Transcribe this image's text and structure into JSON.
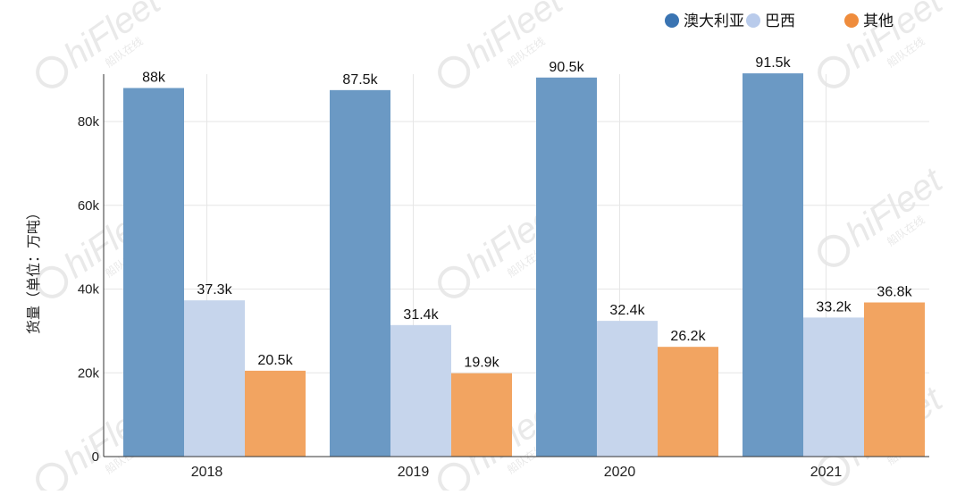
{
  "chart_data": {
    "type": "bar",
    "title": "",
    "xlabel": "",
    "ylabel": "货量（单位：万吨）",
    "ylim": [
      0,
      90000
    ],
    "yticks": [
      {
        "value": 0,
        "label": "0"
      },
      {
        "value": 20000,
        "label": "20k"
      },
      {
        "value": 40000,
        "label": "40k"
      },
      {
        "value": 60000,
        "label": "60k"
      },
      {
        "value": 80000,
        "label": "80k"
      }
    ],
    "categories": [
      "2018",
      "2019",
      "2020",
      "2021"
    ],
    "series": [
      {
        "name": "澳大利亚",
        "color": "#6b99c4",
        "legend_color": "#3a74b2",
        "values": [
          88000,
          87500,
          90500,
          91500
        ],
        "labels": [
          "88k",
          "87.5k",
          "90.5k",
          "91.5k"
        ]
      },
      {
        "name": "巴西",
        "color": "#c6d5ec",
        "legend_color": "#b9cbeb",
        "values": [
          37300,
          31400,
          32400,
          33200
        ],
        "labels": [
          "37.3k",
          "31.4k",
          "32.4k",
          "33.2k"
        ]
      },
      {
        "name": "其他",
        "color": "#f2a461",
        "legend_color": "#ef8c3c",
        "values": [
          20500,
          19900,
          26200,
          36800
        ],
        "labels": [
          "20.5k",
          "19.9k",
          "26.2k",
          "36.8k"
        ]
      }
    ],
    "grid": true,
    "legend_position": "top-right"
  },
  "watermark": {
    "text": "hiFleet",
    "subtext": "船队在线",
    "color": "#e9e9e9"
  }
}
